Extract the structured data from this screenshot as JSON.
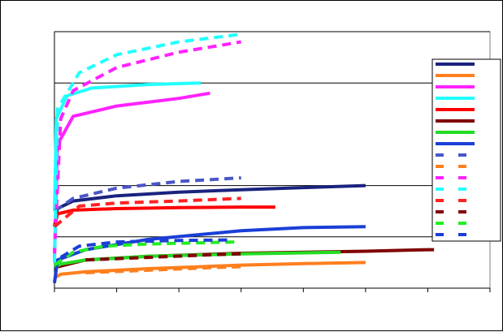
{
  "chart_data": {
    "type": "line",
    "title": "",
    "xlabel": "",
    "ylabel": "",
    "xlim": [
      0,
      7
    ],
    "ylim": [
      0,
      5
    ],
    "grid": "horizontal",
    "legend_position": "right",
    "x_tick_count": 8,
    "y_gridlines": [
      1,
      2,
      4,
      5
    ],
    "series": [
      {
        "color": "#1a237e",
        "dash": false,
        "points": [
          [
            0,
            1.2
          ],
          [
            0.05,
            1.55
          ],
          [
            0.3,
            1.7
          ],
          [
            1,
            1.8
          ],
          [
            2,
            1.87
          ],
          [
            3,
            1.92
          ],
          [
            4,
            1.96
          ],
          [
            5,
            2.0
          ]
        ]
      },
      {
        "color": "#ff7f1e",
        "dash": false,
        "points": [
          [
            0,
            0.2
          ],
          [
            0.1,
            0.27
          ],
          [
            0.5,
            0.32
          ],
          [
            1.5,
            0.38
          ],
          [
            3,
            0.45
          ],
          [
            4,
            0.48
          ],
          [
            5,
            0.5
          ]
        ]
      },
      {
        "color": "#ff22ff",
        "dash": false,
        "points": [
          [
            0,
            0.55
          ],
          [
            0.05,
            2.8
          ],
          [
            0.3,
            3.35
          ],
          [
            1,
            3.55
          ],
          [
            2,
            3.7
          ],
          [
            2.5,
            3.8
          ]
        ]
      },
      {
        "color": "#22ffff",
        "dash": false,
        "points": [
          [
            0,
            1.5
          ],
          [
            0.03,
            3.3
          ],
          [
            0.2,
            3.75
          ],
          [
            0.6,
            3.9
          ],
          [
            1.5,
            3.97
          ],
          [
            2.35,
            4.0
          ]
        ]
      },
      {
        "color": "#ff0000",
        "dash": false,
        "points": [
          [
            0,
            1.2
          ],
          [
            0.05,
            1.45
          ],
          [
            0.3,
            1.52
          ],
          [
            1,
            1.55
          ],
          [
            2,
            1.57
          ],
          [
            3,
            1.58
          ],
          [
            3.55,
            1.58
          ]
        ]
      },
      {
        "color": "#800000",
        "dash": false,
        "points": [
          [
            0,
            0.4
          ],
          [
            0.5,
            0.55
          ],
          [
            1.5,
            0.62
          ],
          [
            3,
            0.68
          ],
          [
            4,
            0.7
          ],
          [
            5,
            0.72
          ],
          [
            6,
            0.75
          ],
          [
            6.1,
            0.75
          ]
        ]
      },
      {
        "color": "#22dd22",
        "dash": false,
        "points": [
          [
            0,
            0.4
          ],
          [
            0.1,
            0.47
          ],
          [
            0.5,
            0.55
          ],
          [
            1.5,
            0.62
          ],
          [
            3,
            0.67
          ],
          [
            4.6,
            0.7
          ]
        ]
      },
      {
        "color": "#1a3fd6",
        "dash": false,
        "points": [
          [
            0,
            0.1
          ],
          [
            0.05,
            0.55
          ],
          [
            0.5,
            0.75
          ],
          [
            1.5,
            0.95
          ],
          [
            3,
            1.12
          ],
          [
            4,
            1.18
          ],
          [
            5,
            1.2
          ]
        ]
      },
      {
        "color": "#4a56c6",
        "dash": true,
        "points": [
          [
            0,
            1.5
          ],
          [
            0.3,
            1.75
          ],
          [
            1,
            1.95
          ],
          [
            2,
            2.08
          ],
          [
            3,
            2.15
          ]
        ]
      },
      {
        "color": "#ff7f1e",
        "dash": true,
        "points": [
          [
            0.5,
            0.3
          ],
          [
            1.5,
            0.35
          ],
          [
            2.5,
            0.4
          ],
          [
            3,
            0.42
          ]
        ]
      },
      {
        "color": "#ff22ff",
        "dash": true,
        "points": [
          [
            0,
            0.7
          ],
          [
            0.1,
            3.3
          ],
          [
            0.3,
            3.85
          ],
          [
            1,
            4.3
          ],
          [
            2,
            4.6
          ],
          [
            3,
            4.8
          ]
        ]
      },
      {
        "color": "#22ffff",
        "dash": true,
        "points": [
          [
            0,
            0.5
          ],
          [
            0.05,
            3.5
          ],
          [
            0.4,
            4.2
          ],
          [
            1,
            4.55
          ],
          [
            2,
            4.8
          ],
          [
            3,
            4.95
          ]
        ]
      },
      {
        "color": "#ff2222",
        "dash": true,
        "points": [
          [
            0,
            1.2
          ],
          [
            0.4,
            1.6
          ],
          [
            1,
            1.66
          ],
          [
            2,
            1.7
          ],
          [
            3,
            1.75
          ]
        ]
      },
      {
        "color": "#800000",
        "dash": true,
        "points": [
          [
            0.5,
            0.55
          ],
          [
            1.5,
            0.6
          ],
          [
            2.5,
            0.65
          ],
          [
            3,
            0.67
          ]
        ]
      },
      {
        "color": "#22ee22",
        "dash": true,
        "points": [
          [
            0,
            0.45
          ],
          [
            0.3,
            0.7
          ],
          [
            0.8,
            0.82
          ],
          [
            1.5,
            0.86
          ],
          [
            2.9,
            0.9
          ]
        ]
      },
      {
        "color": "#1a3fd6",
        "dash": true,
        "points": [
          [
            0.1,
            0.6
          ],
          [
            0.4,
            0.82
          ],
          [
            1,
            0.9
          ],
          [
            2,
            0.93
          ],
          [
            2.85,
            0.94
          ]
        ]
      }
    ]
  }
}
